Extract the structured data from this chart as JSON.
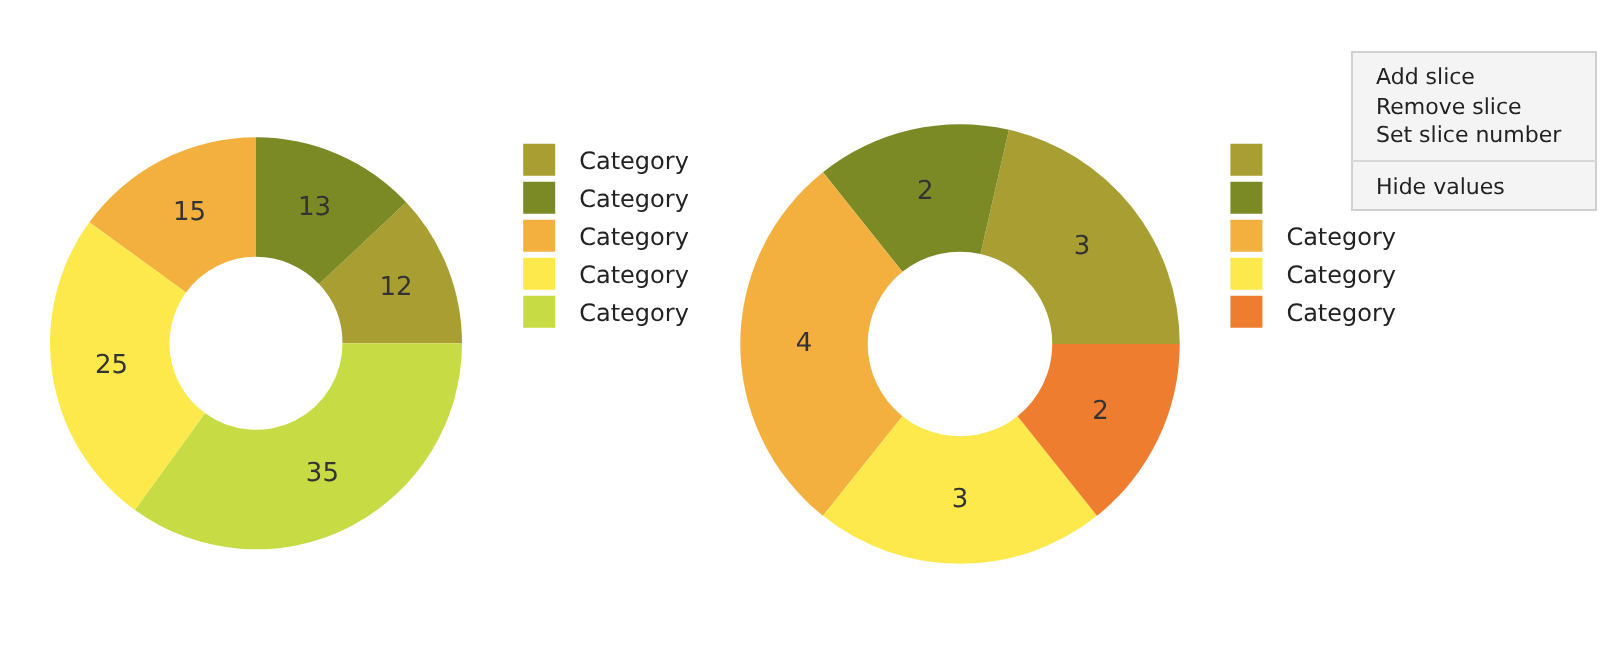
{
  "chart_data": [
    {
      "type": "donut",
      "categories": [
        "Category",
        "Category",
        "Category",
        "Category",
        "Category"
      ],
      "values": [
        12,
        13,
        15,
        25,
        35
      ],
      "colors": [
        "#a89e32",
        "#7c8a25",
        "#f3b03e",
        "#fde94c",
        "#c7dc44"
      ],
      "data_labels": true,
      "legend": "right"
    },
    {
      "type": "donut",
      "categories": [
        null,
        null,
        "Category",
        "Category",
        "Category"
      ],
      "values": [
        3,
        2,
        4,
        3,
        2
      ],
      "colors": [
        "#a89e32",
        "#7c8a25",
        "#f3b03e",
        "#fde94c",
        "#ef7d30"
      ],
      "data_labels": true,
      "legend": "right",
      "annotations": [
        "Add slice",
        "Remove slice",
        "Set slice number",
        "Hide values"
      ]
    }
  ]
}
